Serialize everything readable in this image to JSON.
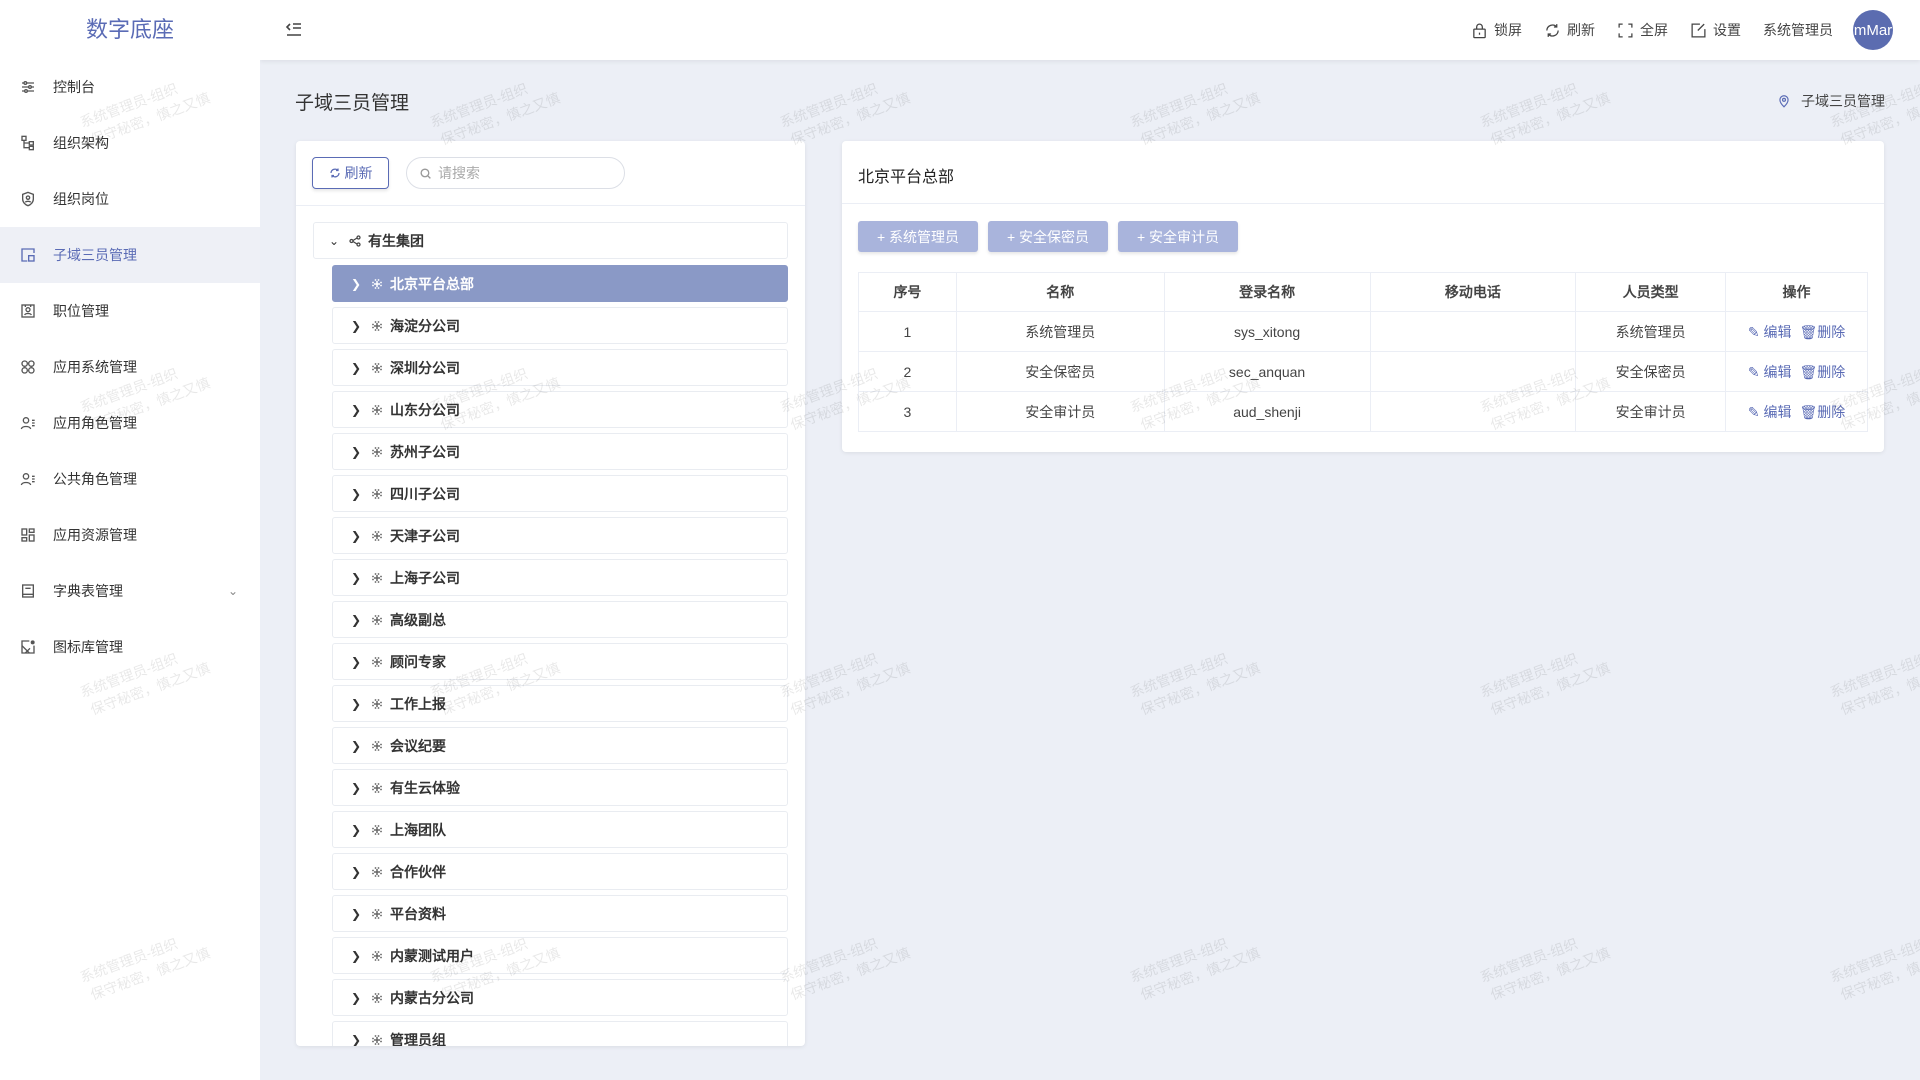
{
  "app": {
    "logo": "数字底座"
  },
  "sidebar": {
    "items": [
      {
        "label": "控制台",
        "icon": "sliders-icon"
      },
      {
        "label": "组织架构",
        "icon": "org-tree-icon"
      },
      {
        "label": "组织岗位",
        "icon": "shield-user-icon"
      },
      {
        "label": "子域三员管理",
        "icon": "layout-icon",
        "active": true
      },
      {
        "label": "职位管理",
        "icon": "id-card-icon"
      },
      {
        "label": "应用系统管理",
        "icon": "apps-icon"
      },
      {
        "label": "应用角色管理",
        "icon": "user-list-icon"
      },
      {
        "label": "公共角色管理",
        "icon": "user-list-icon"
      },
      {
        "label": "应用资源管理",
        "icon": "grid-icon"
      },
      {
        "label": "字典表管理",
        "icon": "book-icon",
        "has_children": true
      },
      {
        "label": "图标库管理",
        "icon": "image-icon"
      }
    ]
  },
  "header": {
    "lock": "锁屏",
    "refresh": "刷新",
    "fullscreen": "全屏",
    "settings": "设置",
    "user": "系统管理员",
    "avatar": "mMar"
  },
  "page": {
    "title": "子域三员管理",
    "breadcrumb": "子域三员管理"
  },
  "tree": {
    "refresh": "刷新",
    "search_placeholder": "请搜索",
    "root": "有生集团",
    "selected": "北京平台总部",
    "children": [
      "北京平台总部",
      "海淀分公司",
      "深圳分公司",
      "山东分公司",
      "苏州子公司",
      "四川子公司",
      "天津子公司",
      "上海子公司",
      "高级副总",
      "顾问专家",
      "工作上报",
      "会议纪要",
      "有生云体验",
      "上海团队",
      "合作伙伴",
      "平台资料",
      "内蒙测试用户",
      "内蒙古分公司",
      "管理员组"
    ]
  },
  "detail": {
    "title": "北京平台总部",
    "buttons": [
      "+ 系统管理员",
      "+ 安全保密员",
      "+ 安全审计员"
    ],
    "columns": [
      "序号",
      "名称",
      "登录名称",
      "移动电话",
      "人员类型",
      "操作"
    ],
    "rows": [
      {
        "no": "1",
        "name": "系统管理员",
        "login": "sys_xitong",
        "phone": "",
        "type": "系统管理员"
      },
      {
        "no": "2",
        "name": "安全保密员",
        "login": "sec_anquan",
        "phone": "",
        "type": "安全保密员"
      },
      {
        "no": "3",
        "name": "安全审计员",
        "login": "aud_shenji",
        "phone": "",
        "type": "安全审计员"
      }
    ],
    "edit": "编辑",
    "delete": "删除"
  },
  "watermark": [
    "系统管理员-组织",
    "保守秘密，慎之又慎"
  ],
  "colors": {
    "primary": "#5a6bb5",
    "selected": "#8a99c6",
    "button": "#a9b4dc",
    "background": "#eceff6"
  }
}
